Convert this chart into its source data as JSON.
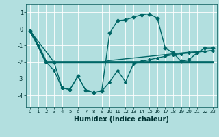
{
  "xlabel": "Humidex (Indice chaleur)",
  "xlim": [
    -0.5,
    23.5
  ],
  "ylim": [
    -4.7,
    1.5
  ],
  "yticks": [
    1,
    0,
    -1,
    -2,
    -3,
    -4
  ],
  "xticks": [
    0,
    1,
    2,
    3,
    4,
    5,
    6,
    7,
    8,
    9,
    10,
    11,
    12,
    13,
    14,
    15,
    16,
    17,
    18,
    19,
    20,
    21,
    22,
    23
  ],
  "bg_color": "#b2dfdf",
  "grid_color": "#ffffff",
  "line_color": "#006666",
  "line1": {
    "x": [
      0,
      1,
      2,
      3,
      4,
      5,
      6,
      7,
      8,
      9,
      10,
      11,
      12,
      13,
      14,
      15,
      16,
      17,
      18,
      19,
      20,
      21,
      22,
      23
    ],
    "y": [
      -0.12,
      -1.0,
      -2.0,
      -2.0,
      -2.0,
      -2.0,
      -2.0,
      -2.0,
      -2.0,
      -2.0,
      -2.0,
      -2.0,
      -2.0,
      -2.0,
      -2.0,
      -2.0,
      -2.0,
      -2.0,
      -2.0,
      -2.0,
      -2.0,
      -2.0,
      -2.0,
      -2.0
    ],
    "lw": 2.2
  },
  "line2": {
    "x": [
      0,
      1,
      2,
      3,
      4,
      5,
      6,
      7,
      8,
      9,
      10,
      11,
      12,
      13,
      14,
      15,
      16,
      17,
      18,
      19,
      20,
      21,
      22,
      23
    ],
    "y": [
      -0.12,
      -1.0,
      -2.0,
      -2.0,
      -2.0,
      -2.0,
      -2.0,
      -2.0,
      -2.0,
      -2.0,
      -1.9,
      -1.85,
      -1.8,
      -1.75,
      -1.7,
      -1.65,
      -1.6,
      -1.55,
      -1.5,
      -1.45,
      -1.4,
      -1.38,
      -1.35,
      -1.3
    ],
    "lw": 1.0
  },
  "line3": {
    "x": [
      0,
      1,
      2,
      3,
      4,
      5,
      6,
      7,
      8,
      9,
      10,
      11,
      12,
      13,
      14,
      15,
      16,
      17,
      18,
      19,
      20,
      21,
      22,
      23
    ],
    "y": [
      -0.12,
      -1.0,
      -2.0,
      -2.5,
      -3.55,
      -3.65,
      -2.85,
      -3.7,
      -3.85,
      -3.75,
      -3.2,
      -2.5,
      -3.2,
      -2.1,
      -1.95,
      -1.85,
      -1.75,
      -1.65,
      -1.55,
      -1.5,
      -1.45,
      -1.4,
      -1.35,
      -1.3
    ],
    "lw": 1.0
  },
  "line4": {
    "x": [
      0,
      3,
      4,
      5,
      6,
      7,
      8,
      9,
      10,
      11,
      12,
      13,
      14,
      15,
      16,
      17,
      18,
      19,
      20,
      21,
      22,
      23
    ],
    "y": [
      -0.12,
      -2.0,
      -3.55,
      -3.65,
      -2.85,
      -3.7,
      -3.85,
      -3.75,
      -0.25,
      0.5,
      0.55,
      0.7,
      0.85,
      0.9,
      0.65,
      -1.15,
      -1.45,
      -1.95,
      -1.85,
      -1.45,
      -1.15,
      -1.15
    ],
    "lw": 1.0,
    "marker": "D",
    "ms": 2.5
  }
}
